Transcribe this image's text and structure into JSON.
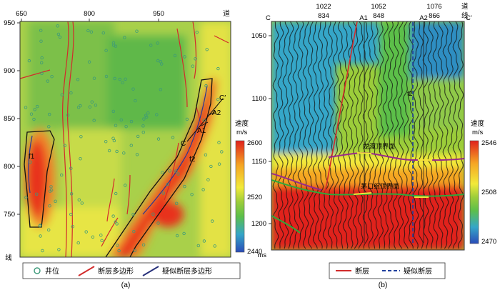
{
  "chart_data": [
    {
      "type": "heatmap",
      "panel": "(a)",
      "x_ticks": [
        "650",
        "800",
        "950"
      ],
      "x_axis_end_label": "道",
      "y_ticks": [
        "950",
        "900",
        "850",
        "800",
        "750"
      ],
      "y_axis_end_label": "线",
      "colorbar": {
        "title": "速度",
        "unit": "m/s",
        "ticks": [
          "2600",
          "2520",
          "2440"
        ],
        "range": [
          2440,
          2600
        ]
      },
      "annotations": [
        "f1",
        "f2",
        "C",
        "C′",
        "A1",
        "A2"
      ],
      "legend": {
        "items": [
          {
            "label": "井位",
            "symbol": "well-circle",
            "color": "#3d9a7a"
          },
          {
            "label": "断层多边形",
            "symbol": "red-line",
            "color": "#d22b2b"
          },
          {
            "label": "疑似断层多边形",
            "symbol": "blue-line",
            "color": "#27307a"
          }
        ]
      },
      "caption": "(a)"
    },
    {
      "type": "heatmap",
      "panel": "(b)",
      "trace_ticks_top": [
        "1022",
        "1052",
        "1076"
      ],
      "trace_ticks_bottom": [
        "834",
        "848",
        "866"
      ],
      "top_axis_end_label_1": "道",
      "top_axis_end_label_2": "线",
      "section_ends": [
        "C",
        "C′"
      ],
      "well_labels": [
        "A1",
        "A2"
      ],
      "y_ticks": [
        "1050",
        "1100",
        "1150",
        "1200"
      ],
      "y_unit": "ms",
      "horizon_labels": [
        "龙潭顶界面",
        "茅口组顶界面"
      ],
      "fault_label": "f2",
      "colorbar": {
        "title": "速度",
        "unit": "m/s",
        "ticks": [
          "2546",
          "2508",
          "2470"
        ],
        "range": [
          2470,
          2546
        ]
      },
      "legend": {
        "items": [
          {
            "label": "断层",
            "symbol": "red-line",
            "color": "#d22b2b"
          },
          {
            "label": "疑似断层",
            "symbol": "blue-dash",
            "color": "#1f3f9e"
          }
        ]
      },
      "caption": "(b)"
    }
  ]
}
